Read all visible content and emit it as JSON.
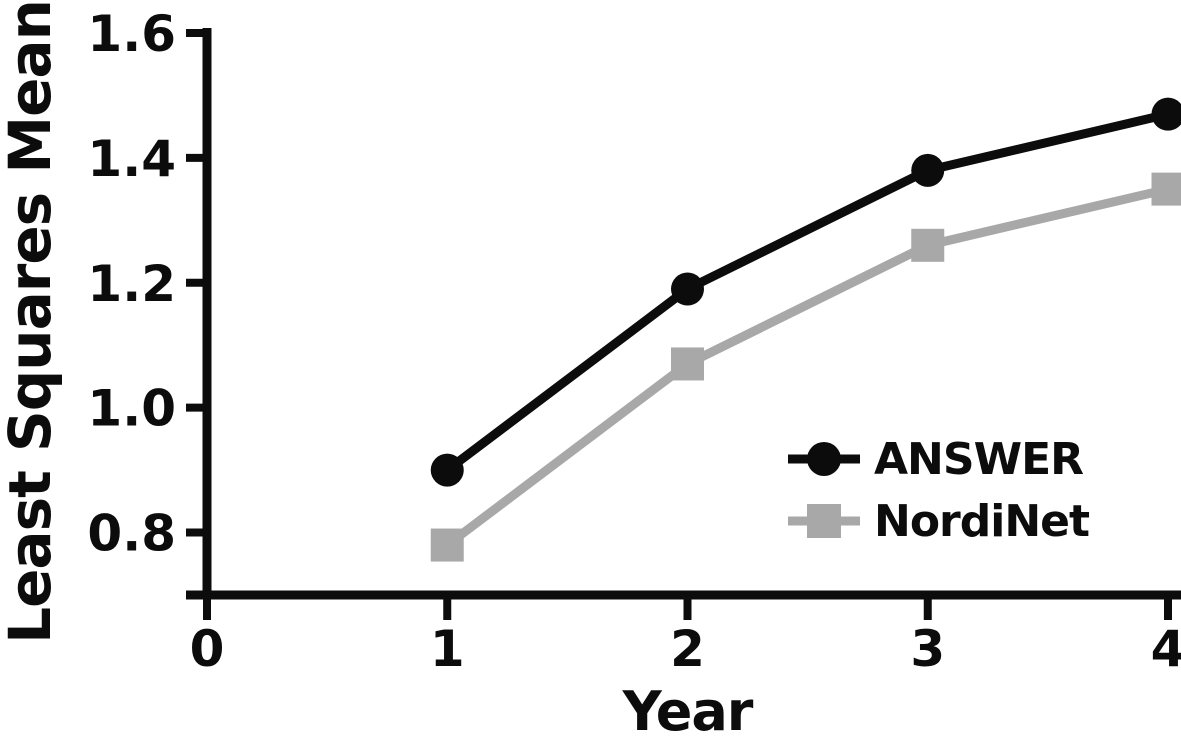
{
  "chart_data": {
    "type": "line",
    "title": "",
    "xlabel": "Year",
    "ylabel": "Least Squares Mean",
    "x": [
      1,
      2,
      3,
      4
    ],
    "x_ticks": [
      0,
      1,
      2,
      3,
      4
    ],
    "y_ticks": [
      1.6,
      1.4,
      1.2,
      1.0,
      0.8
    ],
    "xlim": [
      0,
      4
    ],
    "ylim": [
      0.7,
      1.6
    ],
    "grid": false,
    "legend_position": "inside-lower-right",
    "background_color": "#ffffff",
    "axis_color": "#0c0c0c",
    "series": [
      {
        "name": "ANSWER",
        "color": "#0c0c0c",
        "marker": "circle",
        "values": [
          0.9,
          1.19,
          1.38,
          1.47
        ]
      },
      {
        "name": "NordiNet",
        "color": "#a8a8a8",
        "marker": "square",
        "values": [
          0.78,
          1.07,
          1.26,
          1.35
        ]
      }
    ]
  }
}
